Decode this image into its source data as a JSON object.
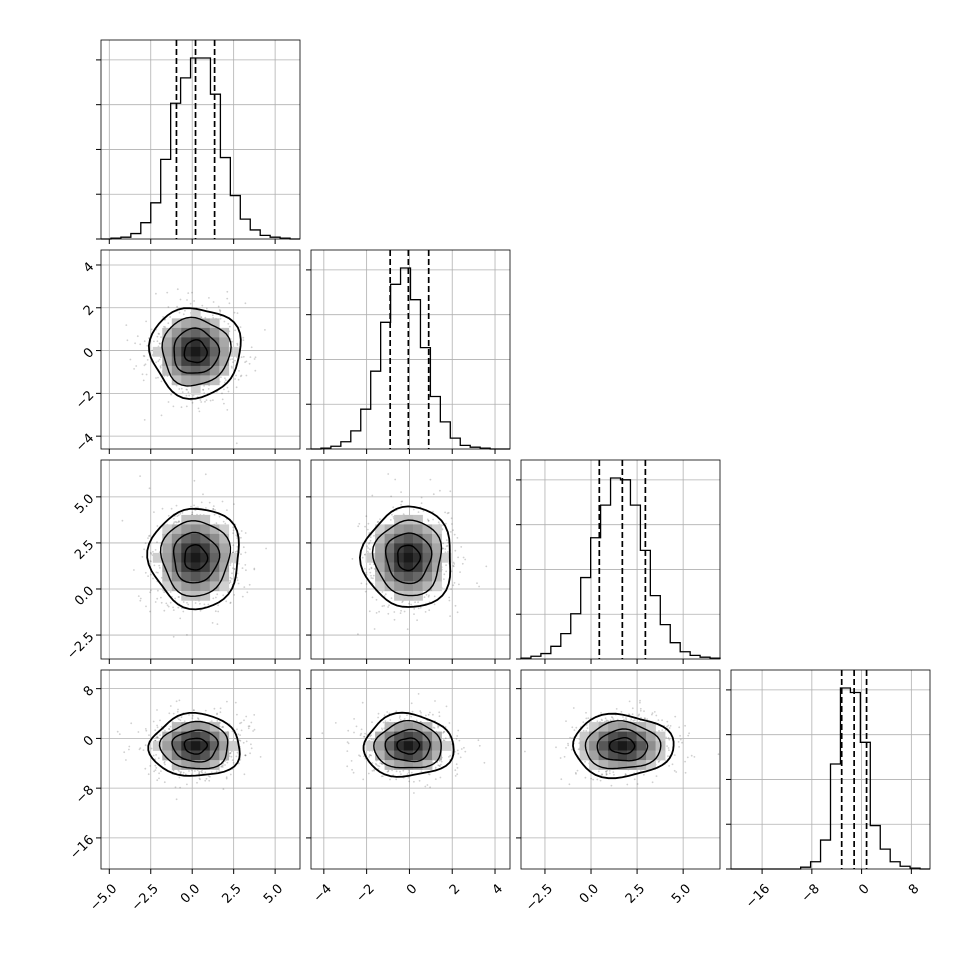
{
  "chart_data": {
    "type": "corner",
    "title": "",
    "parameters": [
      {
        "range": [
          -5.5,
          6.5
        ],
        "quantiles": [
          -0.95,
          0.2,
          1.35
        ],
        "ticks": [
          "-5.0",
          "-2.5",
          "0.0",
          "2.5",
          "5.0"
        ],
        "tick_values": [
          -5,
          -2.5,
          0,
          2.5,
          5
        ]
      },
      {
        "range": [
          -4.6,
          4.7
        ],
        "quantiles": [
          -0.9,
          -0.05,
          0.9
        ],
        "ticks": [
          "-4",
          "-2",
          "0",
          "2",
          "4"
        ],
        "tick_values": [
          -4,
          -2,
          0,
          2,
          4
        ]
      },
      {
        "range": [
          -3.8,
          7.0
        ],
        "quantiles": [
          0.45,
          1.7,
          2.95
        ],
        "ticks": [
          "-2.5",
          "0.0",
          "2.5",
          "5.0"
        ],
        "tick_values": [
          -2.5,
          0,
          2.5,
          5
        ]
      },
      {
        "range": [
          -21,
          11
        ],
        "quantiles": [
          -3.2,
          -1.2,
          0.8
        ],
        "ticks": [
          "-16",
          "-8",
          "0",
          "8"
        ],
        "tick_values": [
          -16,
          -8,
          0,
          8
        ]
      }
    ],
    "histograms": [
      {
        "bin_edges": [
          -5.5,
          -4.9,
          -4.3,
          -3.7,
          -3.1,
          -2.5,
          -1.9,
          -1.3,
          -0.7,
          -0.1,
          0.5,
          1.1,
          1.7,
          2.3,
          2.9,
          3.5,
          4.1,
          4.7,
          5.3,
          5.9,
          6.5
        ],
        "counts": [
          0,
          1,
          2,
          6,
          18,
          40,
          88,
          150,
          178,
          200,
          200,
          160,
          90,
          48,
          22,
          10,
          4,
          2,
          1,
          0
        ]
      },
      {
        "bin_edges": [
          -4.6,
          -4.135,
          -3.67,
          -3.205,
          -2.74,
          -2.275,
          -1.81,
          -1.345,
          -0.88,
          -0.415,
          0.05,
          0.515,
          0.98,
          1.445,
          1.91,
          2.375,
          2.84,
          3.305,
          3.77,
          4.235,
          4.7
        ],
        "counts": [
          0,
          1,
          3,
          8,
          20,
          44,
          86,
          140,
          182,
          200,
          165,
          112,
          58,
          30,
          12,
          4,
          2,
          1,
          0,
          0
        ]
      },
      {
        "bin_edges": [
          -3.8,
          -3.26,
          -2.72,
          -2.18,
          -1.64,
          -1.1,
          -0.56,
          -0.02,
          0.52,
          1.06,
          1.6,
          2.14,
          2.68,
          3.22,
          3.76,
          4.3,
          4.84,
          5.38,
          5.92,
          6.46,
          7.0
        ],
        "counts": [
          1,
          3,
          6,
          14,
          28,
          50,
          90,
          134,
          170,
          200,
          198,
          170,
          120,
          70,
          38,
          18,
          8,
          4,
          2,
          1
        ]
      },
      {
        "bin_edges": [
          -21,
          -19.4,
          -17.8,
          -16.2,
          -14.6,
          -13,
          -11.4,
          -9.8,
          -8.2,
          -6.6,
          -5,
          -3.4,
          -1.8,
          -0.2,
          1.4,
          3,
          4.6,
          6.2,
          7.8,
          9.4,
          11
        ],
        "counts": [
          0,
          0,
          0,
          0,
          0,
          0,
          0,
          2,
          8,
          32,
          116,
          200,
          195,
          140,
          48,
          22,
          8,
          3,
          1,
          0
        ]
      }
    ],
    "pairs": [
      {
        "row": 1,
        "col": 0,
        "mean": [
          0.2,
          -0.05
        ],
        "sd": [
          1.3,
          1.0
        ],
        "contour_scale": [
          1,
          1
        ]
      },
      {
        "row": 2,
        "col": 0,
        "mean": [
          0.2,
          1.7
        ],
        "sd": [
          1.3,
          1.3
        ],
        "contour_scale": [
          1,
          1
        ]
      },
      {
        "row": 2,
        "col": 1,
        "mean": [
          -0.05,
          1.7
        ],
        "sd": [
          1.0,
          1.3
        ],
        "contour_scale": [
          1,
          1
        ]
      },
      {
        "row": 3,
        "col": 0,
        "mean": [
          0.2,
          -1.2
        ],
        "sd": [
          1.3,
          2.4
        ],
        "contour_scale": [
          1,
          1
        ]
      },
      {
        "row": 3,
        "col": 1,
        "mean": [
          -0.05,
          -1.2
        ],
        "sd": [
          1.0,
          2.4
        ],
        "contour_scale": [
          1,
          1
        ]
      },
      {
        "row": 3,
        "col": 2,
        "mean": [
          1.7,
          -1.2
        ],
        "sd": [
          1.3,
          2.4
        ],
        "contour_scale": [
          1,
          1
        ]
      }
    ],
    "contour_levels_sigma": [
      0.5,
      1.0,
      1.5,
      2.0
    ],
    "grid": true,
    "xlabel": "",
    "ylabel": ""
  }
}
